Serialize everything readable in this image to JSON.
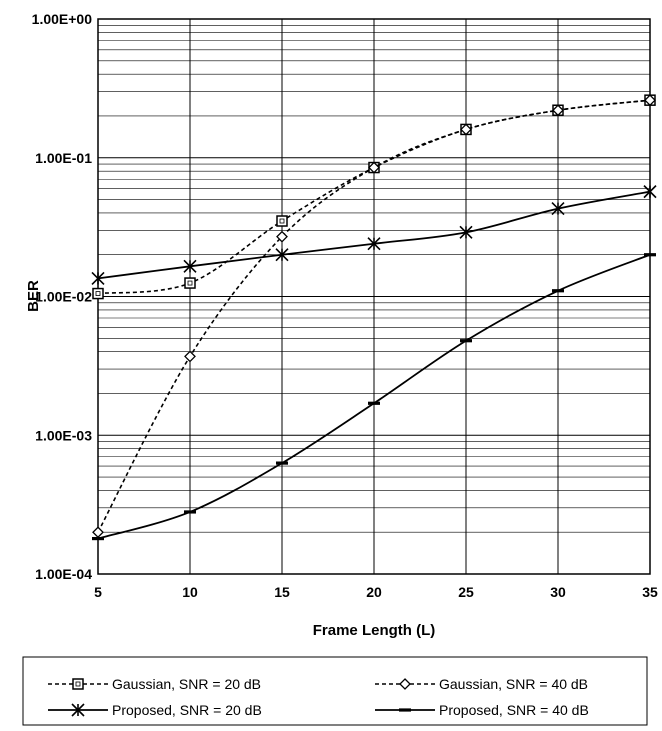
{
  "chart_data": {
    "type": "line",
    "xlabel": "Frame Length (L)",
    "ylabel": "BER",
    "x": [
      5,
      10,
      15,
      20,
      25,
      30,
      35
    ],
    "xlim": [
      5,
      35
    ],
    "ylim": [
      0.0001,
      1
    ],
    "yscale": "log",
    "x_tick_labels": [
      "5",
      "10",
      "15",
      "20",
      "25",
      "30",
      "35"
    ],
    "y_ticks": [
      0.0001,
      0.001,
      0.01,
      0.1,
      1
    ],
    "y_tick_labels": [
      "1.00E-04",
      "1.00E-03",
      "1.00E-02",
      "1.00E-01",
      "1.00E+00"
    ],
    "grid": true,
    "legend_position": "bottom",
    "series": [
      {
        "name": "Gaussian, SNR = 20 dB",
        "values": [
          0.0105,
          0.0125,
          0.035,
          0.085,
          0.16,
          0.22,
          0.26
        ],
        "marker": "square",
        "line": "dashed",
        "color": "#000000"
      },
      {
        "name": "Gaussian, SNR = 40 dB",
        "values": [
          0.0002,
          0.0037,
          0.027,
          0.085,
          0.16,
          0.22,
          0.26
        ],
        "marker": "diamond",
        "line": "dashed",
        "color": "#000000"
      },
      {
        "name": "Proposed, SNR = 20 dB",
        "values": [
          0.0135,
          0.0165,
          0.02,
          0.024,
          0.029,
          0.043,
          0.057
        ],
        "marker": "star",
        "line": "solid",
        "color": "#000000"
      },
      {
        "name": "Proposed, SNR = 40 dB",
        "values": [
          0.00018,
          0.00028,
          0.00063,
          0.0017,
          0.0048,
          0.011,
          0.02
        ],
        "marker": "dash",
        "line": "solid",
        "color": "#000000"
      }
    ]
  }
}
